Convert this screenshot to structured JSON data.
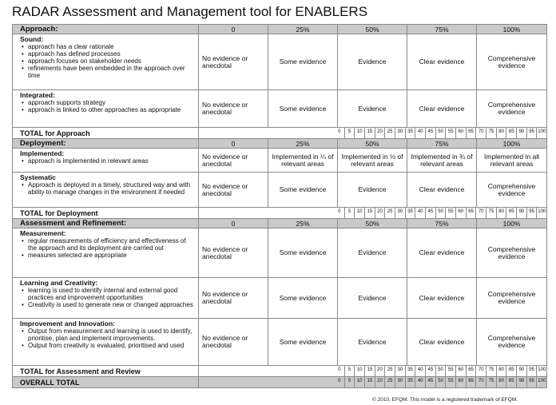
{
  "title": "RADAR Assessment and Management tool for ENABLERS",
  "levels": [
    "0",
    "25%",
    "50%",
    "75%",
    "100%"
  ],
  "copyright": "© 2010, EFQM. This model is a registered trademark of EFQM.",
  "sections": {
    "approach": {
      "label": "Approach:",
      "criteria": [
        {
          "title": "Sound:",
          "bullets": [
            "approach has  a clear  rationale",
            "approach has  defined processes",
            "approach focuses on  stakeholder needs",
            "refinements have been embedded in the approach over time"
          ],
          "levels": [
            "No evidence or anecdotal",
            "Some evidence",
            "Evidence",
            "Clear  evidence",
            "Comprehensive evidence"
          ]
        },
        {
          "title": "Integrated:",
          "bullets": [
            "approach supports strategy",
            "approach is linked to other approaches as appropriate"
          ],
          "levels": [
            "No evidence or anecdotal",
            "Some evidence",
            "Evidence",
            "Clear  evidence",
            "Comprehensive evidence"
          ]
        }
      ],
      "total_label": "TOTAL for Approach"
    },
    "deployment": {
      "label": "Deployment:",
      "criteria": [
        {
          "title": "Implemented:",
          "bullets": [
            "approach is implemented in relevant areas"
          ],
          "levels": [
            "No evidence or anecdotal",
            "Implemented  in ¼ of relevant areas",
            "Implemented  in ½ of relevant areas",
            "Implemented  in ¾ of relevant areas",
            "Implemented  in all relevant areas"
          ]
        },
        {
          "title": "Systematic",
          "bullets": [
            "Approach is deployed in a timely, structured way and with ability to manage changes in the environment if needed"
          ],
          "levels": [
            "No evidence or anecdotal",
            "Some evidence",
            "Evidence",
            "Clear  evidence",
            "Comprehensive evidence"
          ]
        }
      ],
      "total_label": "TOTAL for Deployment"
    },
    "assessment": {
      "label": "Assessment and  Refinement:",
      "criteria": [
        {
          "title": "Measurement:",
          "bullets": [
            "regular measurements of efficiency and effectiveness of the approach and its deployment are carried out",
            "measures selected are appropriate"
          ],
          "levels": [
            "No evidence or anecdotal",
            "Some evidence",
            "Evidence",
            "Clear  evidence",
            "Comprehensive evidence"
          ]
        },
        {
          "title": "Learning and  Creativity:",
          "bullets": [
            "learning is used to identify internal and external good practices and improvement opportunities",
            "Creativity is used to generate new or changed approaches"
          ],
          "levels": [
            "No evidence or anecdotal",
            "Some evidence",
            "Evidence",
            "Clear  evidence",
            "Comprehensive evidence"
          ]
        },
        {
          "title": "Improvement and  Innovation:",
          "bullets": [
            "Output from measurement and learning is used to identify, prioritise, plan and implement improvements.",
            "Output from creativity is evaluated, prioritised and used"
          ],
          "levels": [
            "No evidence or anecdotal",
            "Some evidence",
            "Evidence",
            "Clear  evidence",
            "Comprehensive evidence"
          ]
        }
      ],
      "total_label": "TOTAL for Assessment and  Review"
    }
  },
  "overall_label": "OVERALL TOTAL",
  "score_scale": [
    "0",
    "5",
    "10",
    "15",
    "20",
    "25",
    "30",
    "35",
    "40",
    "45",
    "50",
    "55",
    "60",
    "65",
    "70",
    "75",
    "80",
    "85",
    "90",
    "95",
    "100"
  ]
}
